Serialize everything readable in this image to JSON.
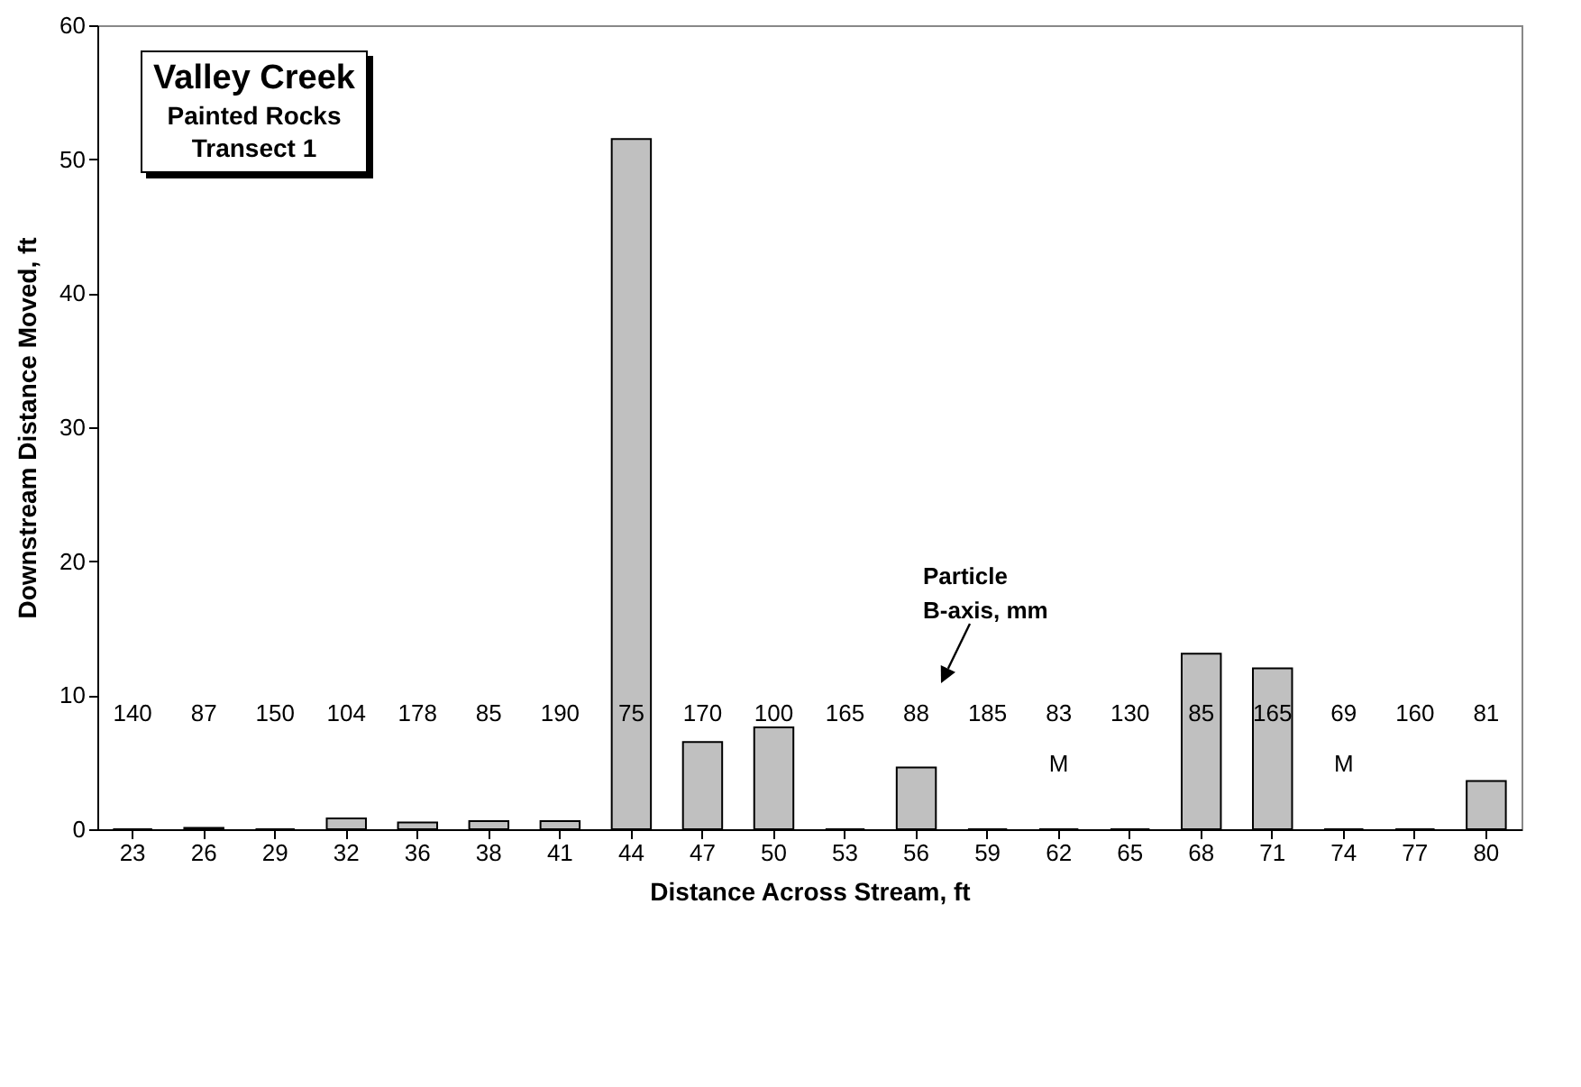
{
  "chart_data": {
    "type": "bar",
    "title": "Valley Creek",
    "subtitle": "Painted Rocks\nTransect 1",
    "xlabel": "Distance Across Stream, ft",
    "ylabel": "Downstream Distance Moved, ft",
    "categories": [
      "23",
      "26",
      "29",
      "32",
      "36",
      "38",
      "41",
      "44",
      "47",
      "50",
      "53",
      "56",
      "59",
      "62",
      "65",
      "68",
      "71",
      "74",
      "77",
      "80"
    ],
    "values": [
      0,
      0.1,
      0,
      0.8,
      0.5,
      0.6,
      0.6,
      51.5,
      6.5,
      7.6,
      0,
      4.6,
      0,
      0,
      0,
      13.1,
      12,
      0,
      0,
      3.6
    ],
    "color": "#c0c0c0",
    "ylim": [
      0,
      60
    ],
    "yticks": [
      0,
      10,
      20,
      30,
      40,
      50,
      60
    ],
    "grid": false,
    "annotations": [
      "140",
      "87",
      "150",
      "104",
      "178",
      "85",
      "190",
      "75",
      "170",
      "100",
      "165",
      "88",
      "185",
      "83\nM",
      "130",
      "85",
      "165",
      "69\nM",
      "160",
      "81",
      "Particle\nB-axis, mm"
    ]
  }
}
